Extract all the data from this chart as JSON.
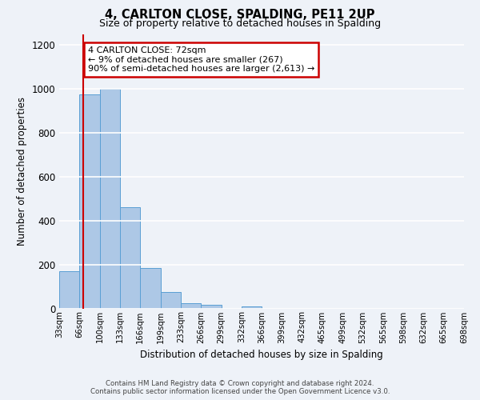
{
  "title": "4, CARLTON CLOSE, SPALDING, PE11 2UP",
  "subtitle": "Size of property relative to detached houses in Spalding",
  "xlabel": "Distribution of detached houses by size in Spalding",
  "ylabel": "Number of detached properties",
  "bin_labels": [
    "33sqm",
    "66sqm",
    "100sqm",
    "133sqm",
    "166sqm",
    "199sqm",
    "233sqm",
    "266sqm",
    "299sqm",
    "332sqm",
    "366sqm",
    "399sqm",
    "432sqm",
    "465sqm",
    "499sqm",
    "532sqm",
    "565sqm",
    "598sqm",
    "632sqm",
    "665sqm",
    "698sqm"
  ],
  "bar_values": [
    170,
    975,
    1000,
    460,
    185,
    75,
    25,
    15,
    0,
    10,
    0,
    0,
    0,
    0,
    0,
    0,
    0,
    0,
    0,
    0
  ],
  "bar_color": "#adc8e6",
  "bar_edge_color": "#5a9fd4",
  "vline_color": "#cc0000",
  "vline_bin_index": 1,
  "ylim": [
    0,
    1250
  ],
  "yticks": [
    0,
    200,
    400,
    600,
    800,
    1000,
    1200
  ],
  "annotation_text": "4 CARLTON CLOSE: 72sqm\n← 9% of detached houses are smaller (267)\n90% of semi-detached houses are larger (2,613) →",
  "annotation_box_facecolor": "#ffffff",
  "annotation_box_edgecolor": "#cc0000",
  "footer_line1": "Contains HM Land Registry data © Crown copyright and database right 2024.",
  "footer_line2": "Contains public sector information licensed under the Open Government Licence v3.0.",
  "background_color": "#eef2f8",
  "grid_color": "#ffffff",
  "num_bins": 20
}
